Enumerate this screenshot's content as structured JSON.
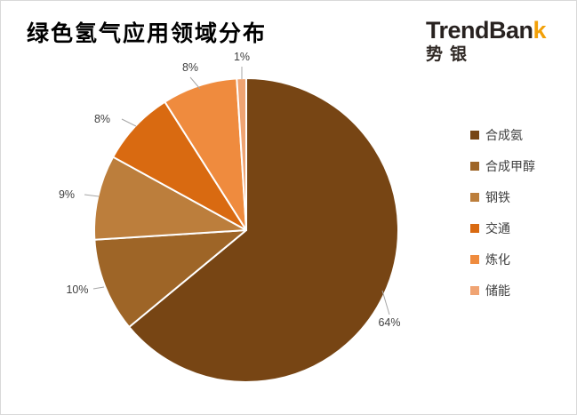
{
  "header": {
    "title": "绿色氢气应用领域分布"
  },
  "logo": {
    "brand_prefix": "TrendBan",
    "brand_accent": "k",
    "brand_sub": "势银",
    "accent_color": "#f2a007"
  },
  "chart_data": {
    "type": "pie",
    "title": "绿色氢气应用领域分布",
    "categories": [
      "合成氨",
      "合成甲醇",
      "钢铁",
      "交通",
      "炼化",
      "储能"
    ],
    "values": [
      64,
      10,
      9,
      8,
      8,
      1
    ],
    "unit": "%",
    "data_labels": [
      "64%",
      "10%",
      "9%",
      "8%",
      "8%",
      "1%"
    ],
    "colors": [
      "#774514",
      "#9E6527",
      "#BC7E3C",
      "#D96A11",
      "#EF8B3E",
      "#F0A473"
    ],
    "slice_border_color": "#FFFFFF",
    "label_color": "#404040",
    "leader_line_color": "#A6A6A6",
    "legend_position": "right",
    "start_angle_deg": 0,
    "direction": "clockwise"
  }
}
